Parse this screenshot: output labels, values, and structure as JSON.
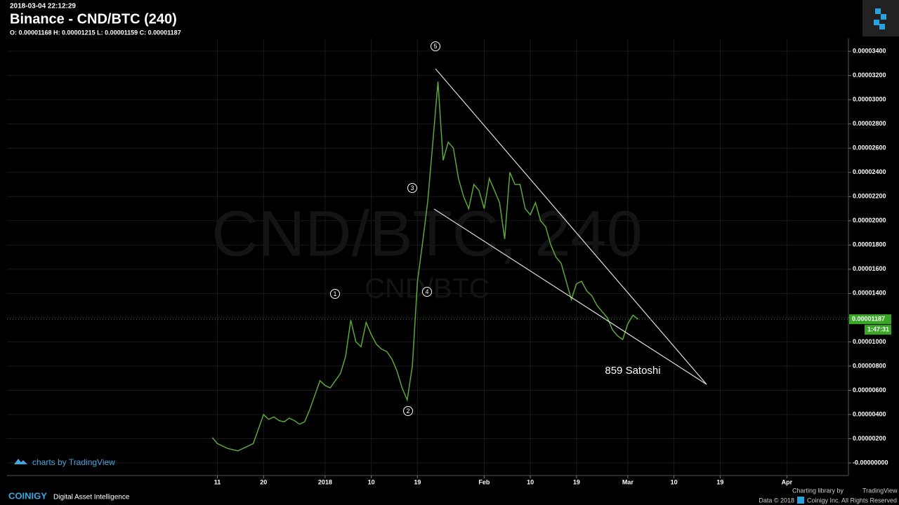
{
  "header": {
    "timestamp": "2018-03-04 22:12:29",
    "title": "Binance - CND/BTC (240)",
    "ohlc": "O: 0.00001168 H: 0.00001215 L: 0.00001159 C: 0.00001187"
  },
  "chart_data": {
    "type": "line",
    "color": "#5aa83a",
    "x": [
      -22,
      -21,
      -20,
      -19,
      -18,
      -17,
      -16,
      -15,
      -14,
      -13,
      -12,
      -11,
      -10,
      -9,
      -8,
      -7,
      -6,
      -5,
      -4,
      -3,
      -2,
      -1,
      0,
      1,
      2,
      3,
      4,
      5,
      6,
      7,
      8,
      9,
      10,
      11,
      12,
      13,
      14,
      15,
      16,
      17,
      18,
      19,
      20,
      21,
      22,
      23,
      24,
      25,
      26,
      27,
      28,
      29,
      30,
      31,
      32,
      33,
      34,
      35,
      36,
      37,
      38,
      39,
      40,
      41,
      42,
      43,
      44,
      45,
      46,
      47,
      48,
      49,
      50,
      51,
      52,
      53,
      54,
      55,
      56,
      57,
      58,
      59,
      60,
      61
    ],
    "values": [
      2.1e-06,
      1.6e-06,
      1.4e-06,
      1.2e-06,
      1.1e-06,
      1e-06,
      1.2e-06,
      1.4e-06,
      1.6e-06,
      2.8e-06,
      4e-06,
      3.6e-06,
      3.8e-06,
      3.5e-06,
      3.4e-06,
      3.7e-06,
      3.5e-06,
      3.2e-06,
      3.4e-06,
      4.4e-06,
      5.6e-06,
      6.8e-06,
      6.4e-06,
      6.2e-06,
      6.8e-06,
      7.4e-06,
      8.8e-06,
      1.18e-05,
      1e-05,
      9.6e-06,
      1.16e-05,
      1.06e-05,
      9.8e-06,
      9.4e-06,
      9.2e-06,
      8.6e-06,
      7.6e-06,
      6.2e-06,
      5.2e-06,
      8e-06,
      1.5e-05,
      1.82e-05,
      2.16e-05,
      2.65e-05,
      3.15e-05,
      2.5e-05,
      2.65e-05,
      2.6e-05,
      2.35e-05,
      2.2e-05,
      2.1e-05,
      2.3e-05,
      2.25e-05,
      2.1e-05,
      2.35e-05,
      2.25e-05,
      2.15e-05,
      1.85e-05,
      2.4e-05,
      2.3e-05,
      2.3e-05,
      2.1e-05,
      2.05e-05,
      2.15e-05,
      2e-05,
      1.95e-05,
      1.8e-05,
      1.7e-05,
      1.65e-05,
      1.5e-05,
      1.35e-05,
      1.48e-05,
      1.5e-05,
      1.42e-05,
      1.38e-05,
      1.3e-05,
      1.25e-05,
      1.2e-05,
      1.1e-05,
      1.05e-05,
      1.02e-05,
      1.15e-05,
      1.22e-05,
      1.187e-05
    ],
    "xlim": [
      -62,
      102
    ],
    "ylim": [
      -1.04e-06,
      3.505e-05
    ],
    "xticks": [
      {
        "value": -21,
        "label": "11"
      },
      {
        "value": -12,
        "label": "20"
      },
      {
        "value": 0,
        "label": "2018"
      },
      {
        "value": 9,
        "label": "10"
      },
      {
        "value": 18,
        "label": "19"
      },
      {
        "value": 31,
        "label": "Feb"
      },
      {
        "value": 40,
        "label": "10"
      },
      {
        "value": 49,
        "label": "19"
      },
      {
        "value": 59,
        "label": "Mar"
      },
      {
        "value": 68,
        "label": "10"
      },
      {
        "value": 77,
        "label": "19"
      },
      {
        "value": 90,
        "label": "Apr"
      }
    ],
    "yticks": [
      {
        "value": 0,
        "label": "-0.00000000"
      },
      {
        "value": 2e-06,
        "label": "0.00000200"
      },
      {
        "value": 4e-06,
        "label": "0.00000400"
      },
      {
        "value": 6e-06,
        "label": "0.00000600"
      },
      {
        "value": 8e-06,
        "label": "0.00000800"
      },
      {
        "value": 1e-05,
        "label": "0.00001000"
      },
      {
        "value": 1.2e-05,
        "label": "0.00001200"
      },
      {
        "value": 1.4e-05,
        "label": "0.00001400"
      },
      {
        "value": 1.6e-05,
        "label": "0.00001600"
      },
      {
        "value": 1.8e-05,
        "label": "0.00001800"
      },
      {
        "value": 2e-05,
        "label": "0.00002000"
      },
      {
        "value": 2.2e-05,
        "label": "0.00002200"
      },
      {
        "value": 2.4e-05,
        "label": "0.00002400"
      },
      {
        "value": 2.6e-05,
        "label": "0.00002600"
      },
      {
        "value": 2.8e-05,
        "label": "0.00002800"
      },
      {
        "value": 3e-05,
        "label": "0.00003000"
      },
      {
        "value": 3.2e-05,
        "label": "0.00003200"
      },
      {
        "value": 3.4e-05,
        "label": "0.00003400"
      }
    ],
    "grid": true,
    "watermark": "CND/BTC, 240",
    "watermark_sub": "CND/BTC",
    "annotations": [
      "1",
      "2",
      "3",
      "4",
      "5",
      "859 Satoshi"
    ],
    "last_price": {
      "value": 1.187e-05,
      "label": "0.00001187"
    },
    "countdown": "1:47:31"
  },
  "footer": {
    "tv": "charts by TradingView",
    "brand": "COINIGY",
    "tagline": "Digital Asset Intelligence",
    "library": "Charting library by",
    "library_name": "TradingView",
    "data": "Data © 2018",
    "rights": "Coinigy Inc. All Rights Reserved"
  }
}
